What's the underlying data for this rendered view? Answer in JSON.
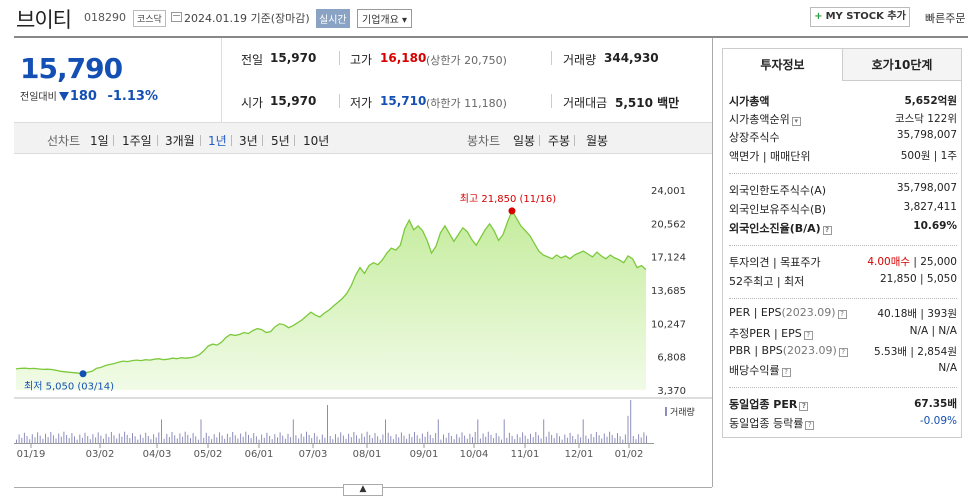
{
  "header": {
    "name": "브이티",
    "code": "018290",
    "market": "코스닥",
    "date": "2024.01.19 기준(장마감)",
    "realtime": "실시간",
    "company_info": "기업개요 ▾",
    "mystock": "MY STOCK 추가",
    "mystock_plus": "+",
    "quick_order": "빠른주문"
  },
  "price": {
    "current": "15,790",
    "change_label": "전일대비",
    "change": "180",
    "change_pct": "-1.13%"
  },
  "stats": {
    "prev_close_label": "전일",
    "prev_close": "15,970",
    "high_label": "고가",
    "high": "16,180",
    "upper_limit": "(상한가 20,750)",
    "volume_label": "거래량",
    "volume": "344,930",
    "open_label": "시가",
    "open": "15,970",
    "low_label": "저가",
    "low": "15,710",
    "lower_limit": "(하한가 11,180)",
    "amount_label": "거래대금",
    "amount": "5,510 백만"
  },
  "tabs": {
    "line_label": "선차트",
    "periods": [
      "1일",
      "1주일",
      "3개월",
      "1년",
      "3년",
      "5년",
      "10년"
    ],
    "active_period": "1년",
    "candle_label": "봉차트",
    "candles": [
      "일봉",
      "주봉",
      "월봉"
    ]
  },
  "chart_data": {
    "type": "area",
    "y_ticks": [
      "24,001",
      "20,562",
      "17,124",
      "13,685",
      "10,247",
      "6,808",
      "3,370"
    ],
    "ylim": [
      3370,
      24001
    ],
    "x_ticks": [
      "01/19",
      "03/02",
      "04/03",
      "05/02",
      "06/01",
      "07/03",
      "08/01",
      "09/01",
      "10/04",
      "11/01",
      "12/01",
      "01/02"
    ],
    "high_annotation": "최고 21,850 (11/16)",
    "low_annotation": "최저 5,050 (03/14)",
    "high_value": 21850,
    "low_value": 5050,
    "volume_label": "거래량",
    "colors": {
      "line": "#7cc93c",
      "fill_top": "#c4ec9c",
      "fill_bottom": "#f1fbe7",
      "high_dot": "#d60000",
      "low_dot": "#1450b4",
      "volume": "#8d8dbb"
    }
  },
  "toggle": "▲",
  "panel": {
    "tab_invest": "투자정보",
    "tab_quote": "호가10단계",
    "market_cap_label": "시가총액",
    "market_cap": "5,652억원",
    "rank_label": "시가총액순위",
    "rank": "코스닥 122위",
    "shares_label": "상장주식수",
    "shares": "35,798,007",
    "par_label": "액면가 | 매매단위",
    "par": "500원 | 1주",
    "foreign_limit_label": "외국인한도주식수(A)",
    "foreign_limit": "35,798,007",
    "foreign_hold_label": "외국인보유주식수(B)",
    "foreign_hold": "3,827,411",
    "foreign_ratio_label": "외국인소진율(B/A)",
    "foreign_ratio": "10.69%",
    "opinion_label": "투자의견 | 목표주가",
    "opinion": "4.00매수",
    "target": "| 25,000",
    "week52_label": "52주최고 | 최저",
    "week52": "21,850 | 5,050",
    "per_label": "PER | EPS",
    "per_period": "(2023.09)",
    "per": "40.18배 | 393원",
    "est_per_label": "추정PER | EPS",
    "est_per": "N/A | N/A",
    "pbr_label": "PBR | BPS",
    "pbr_period": "(2023.09)",
    "pbr": "5.53배 | 2,854원",
    "dividend_label": "배당수익률",
    "dividend": "N/A",
    "sector_per_label": "동일업종 PER",
    "sector_per": "67.35배",
    "sector_change_label": "동일업종 등락률",
    "sector_change": "-0.09%"
  }
}
